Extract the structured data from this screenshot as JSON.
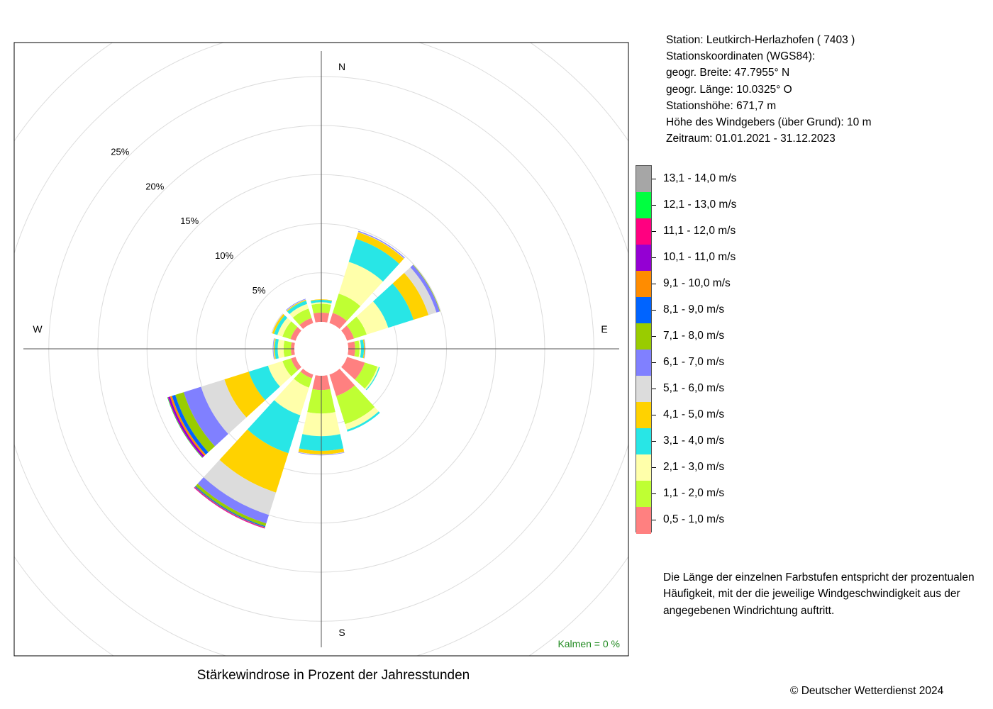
{
  "station_info": {
    "station": "Station:  Leutkirch-Herlazhofen  ( 7403 )",
    "coordinates_label": "Stationskoordinaten (WGS84):",
    "latitude": "geogr. Breite: 47.7955° N",
    "longitude": "geogr. Länge: 10.0325° O",
    "elevation": "Stationshöhe: 671,7 m",
    "sensor_height": "Höhe des Windgebers (über Grund): 10 m",
    "period": "Zeitraum: 01.01.2021 - 31.12.2023"
  },
  "legend": [
    {
      "label": "13,1 - 14,0 m/s",
      "color": "#a6a6a6"
    },
    {
      "label": "12,1 - 13,0 m/s",
      "color": "#00ff40"
    },
    {
      "label": "11,1 - 12,0 m/s",
      "color": "#ff0080"
    },
    {
      "label": "10,1 - 11,0 m/s",
      "color": "#9400d3"
    },
    {
      "label": "9,1 - 10,0 m/s",
      "color": "#ff8c00"
    },
    {
      "label": "8,1 - 9,0 m/s",
      "color": "#0064ff"
    },
    {
      "label": "7,1 - 8,0 m/s",
      "color": "#99cc00"
    },
    {
      "label": "6,1 - 7,0 m/s",
      "color": "#8080ff"
    },
    {
      "label": "5,1 - 6,0 m/s",
      "color": "#dcdcdc"
    },
    {
      "label": "4,1 - 5,0 m/s",
      "color": "#ffd200"
    },
    {
      "label": "3,1 - 4,0 m/s",
      "color": "#28e6e6"
    },
    {
      "label": "2,1 - 3,0 m/s",
      "color": "#ffffaa"
    },
    {
      "label": "1,1 - 2,0 m/s",
      "color": "#bfff33"
    },
    {
      "label": "0,5 - 1,0 m/s",
      "color": "#ff8080"
    }
  ],
  "description": "Die Länge der einzelnen Farbstufen entspricht der prozentualen Häufigkeit, mit der die jeweilige Windgeschwindigkeit aus der angegebenen Windrichtung auftritt.",
  "title": "Stärkewindrose in Prozent der Jahresstunden",
  "copyright": "© Deutscher Wetterdienst  2024",
  "calms": "Kalmen  =  0 %",
  "calms_color": "#228b22",
  "chart_data": {
    "type": "wind-rose",
    "directions_deg": [
      0,
      30,
      60,
      90,
      120,
      150,
      180,
      210,
      240,
      270,
      300,
      330
    ],
    "cardinal_labels": {
      "north": "N",
      "east": "E",
      "south": "S",
      "west": "W"
    },
    "radial_ticks": [
      "5%",
      "10%",
      "15%",
      "20%",
      "25%"
    ],
    "radial_tick_values": [
      5,
      10,
      15,
      20,
      25
    ],
    "speed_classes": [
      "0,5 - 1,0 m/s",
      "1,1 - 2,0 m/s",
      "2,1 - 3,0 m/s",
      "3,1 - 4,0 m/s",
      "4,1 - 5,0 m/s",
      "5,1 - 6,0 m/s",
      "6,1 - 7,0 m/s",
      "7,1 - 8,0 m/s",
      "8,1 - 9,0 m/s",
      "9,1 - 10,0 m/s",
      "10,1 - 11,0 m/s",
      "11,1 - 12,0 m/s",
      "12,1 - 13,0 m/s",
      "13,1 - 14,0 m/s"
    ],
    "series": [
      {
        "direction": 0,
        "values": [
          0.95,
          0.9,
          0.15,
          0.25,
          0.05,
          0,
          0,
          0,
          0,
          0,
          0,
          0,
          0,
          0
        ]
      },
      {
        "direction": 30,
        "values": [
          1.1,
          2.05,
          3.4,
          2.45,
          0.7,
          0.05,
          0.1,
          0,
          0,
          0,
          0,
          0,
          0,
          0
        ]
      },
      {
        "direction": 60,
        "values": [
          0.75,
          1.35,
          2.3,
          2.7,
          1.6,
          0.85,
          0.35,
          0.05,
          0,
          0,
          0,
          0,
          0,
          0
        ]
      },
      {
        "direction": 90,
        "values": [
          0.7,
          0.45,
          0.15,
          0.3,
          0.1,
          0,
          0.05,
          0,
          0,
          0,
          0,
          0,
          0,
          0
        ]
      },
      {
        "direction": 120,
        "values": [
          1.9,
          1.35,
          0.15,
          0.1,
          0,
          0,
          0,
          0,
          0,
          0,
          0,
          0,
          0,
          0
        ]
      },
      {
        "direction": 150,
        "values": [
          2.3,
          3.0,
          0.6,
          0.2,
          0,
          0,
          0,
          0,
          0,
          0,
          0,
          0,
          0,
          0
        ]
      },
      {
        "direction": 180,
        "values": [
          1.45,
          2.4,
          2.3,
          1.5,
          0.35,
          0.05,
          0.05,
          0,
          0,
          0,
          0,
          0,
          0,
          0
        ]
      },
      {
        "direction": 210,
        "values": [
          0.4,
          1.0,
          2.95,
          4.05,
          4.2,
          2.4,
          0.9,
          0.3,
          0.1,
          0.05,
          0.05,
          0.05,
          0,
          0
        ]
      },
      {
        "direction": 240,
        "values": [
          0.5,
          0.9,
          1.55,
          2.05,
          2.6,
          2.5,
          1.85,
          0.9,
          0.35,
          0.2,
          0.2,
          0.05,
          0.05,
          0
        ]
      },
      {
        "direction": 270,
        "values": [
          0.35,
          0.75,
          0.6,
          0.3,
          0.1,
          0.05,
          0.05,
          0,
          0,
          0,
          0,
          0,
          0,
          0
        ]
      },
      {
        "direction": 300,
        "values": [
          0.55,
          0.85,
          0.55,
          0.35,
          0.2,
          0.1,
          0,
          0,
          0,
          0,
          0,
          0,
          0,
          0
        ]
      },
      {
        "direction": 330,
        "values": [
          0.55,
          1.0,
          0.5,
          0.35,
          0.1,
          0.05,
          0.05,
          0,
          0,
          0,
          0,
          0,
          0,
          0
        ]
      }
    ],
    "calms_percent": 0,
    "grid": true
  }
}
